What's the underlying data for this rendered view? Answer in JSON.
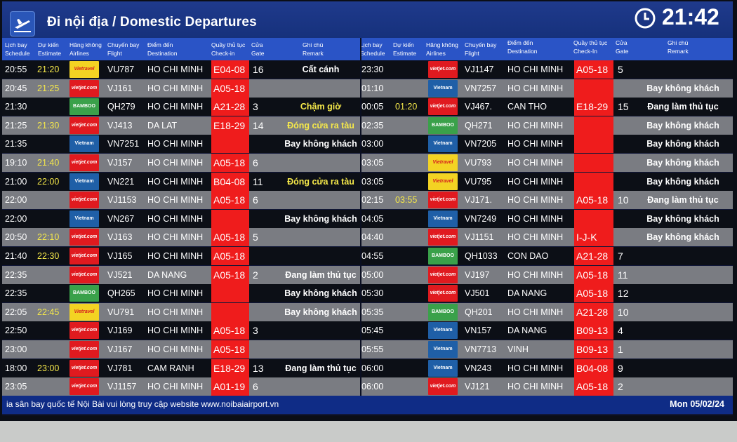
{
  "header": {
    "title": "Đi nội địa / Domestic Departures",
    "clock": "21:42"
  },
  "columns": {
    "schedule": [
      "Lịch bay",
      "Schedule"
    ],
    "estimate": [
      "Dự kiến",
      "Estimate"
    ],
    "airlines": [
      "Hãng không",
      "Airlines"
    ],
    "flight": [
      "Chuyến bay",
      "Flight"
    ],
    "destination": [
      "Điểm đến",
      "Destination"
    ],
    "checkin": [
      "Quầy thủ tục",
      "Check-in"
    ],
    "gate": [
      "Cửa",
      "Gate"
    ],
    "remark": [
      "Ghi chú",
      "Remark"
    ],
    "checkin_right": [
      "Quầy thủ tục",
      "Check-In"
    ]
  },
  "airline_logos": {
    "VJ": {
      "text": "vietjet.com",
      "color": "#e01a1f"
    },
    "VN": {
      "text": "Vietnam Airlines",
      "color": "#1f5fa7"
    },
    "QH": {
      "text": "BAMBOO",
      "color": "#3aa14a"
    },
    "VU": {
      "text": "Vietravel Airlines",
      "color": "#f3d323"
    }
  },
  "left": [
    {
      "schedule": "20:55",
      "estimate": "21:20",
      "airline": "VU",
      "flight": "VU787",
      "destination": "HO CHI MINH",
      "checkin": "E04-08",
      "gate": "16",
      "remark": "Cất cánh",
      "remark_color": "white"
    },
    {
      "schedule": "20:45",
      "estimate": "21:25",
      "airline": "VJ",
      "flight": "VJ161",
      "destination": "HO CHI MINH",
      "checkin": "A05-18",
      "gate": "",
      "remark": "",
      "remark_color": "white"
    },
    {
      "schedule": "21:30",
      "estimate": "",
      "airline": "QH",
      "flight": "QH279",
      "destination": "HO CHI MINH",
      "checkin": "A21-28",
      "gate": "3",
      "remark": "Chậm giờ",
      "remark_color": "yellow"
    },
    {
      "schedule": "21:25",
      "estimate": "21:30",
      "airline": "VJ",
      "flight": "VJ413",
      "destination": "DA LAT",
      "checkin": "E18-29",
      "gate": "14",
      "remark": "Đóng cửa ra tàu",
      "remark_color": "yellow"
    },
    {
      "schedule": "21:35",
      "estimate": "",
      "airline": "VN",
      "flight": "VN7251",
      "destination": "HO CHI MINH",
      "checkin": "",
      "gate": "",
      "remark": "Bay không khách",
      "remark_color": "white"
    },
    {
      "schedule": "19:10",
      "estimate": "21:40",
      "airline": "VJ",
      "flight": "VJ157",
      "destination": "HO CHI MINH",
      "checkin": "A05-18",
      "gate": "6",
      "remark": "",
      "remark_color": "white"
    },
    {
      "schedule": "21:00",
      "estimate": "22:00",
      "airline": "VN",
      "flight": "VN221",
      "destination": "HO CHI MINH",
      "checkin": "B04-08",
      "gate": "11",
      "remark": "Đóng cửa ra tàu",
      "remark_color": "yellow"
    },
    {
      "schedule": "22:00",
      "estimate": "",
      "airline": "VJ",
      "flight": "VJ1153",
      "destination": "HO CHI MINH",
      "checkin": "A05-18",
      "gate": "6",
      "remark": "",
      "remark_color": "white"
    },
    {
      "schedule": "22:00",
      "estimate": "",
      "airline": "VN",
      "flight": "VN267",
      "destination": "HO CHI MINH",
      "checkin": "",
      "gate": "",
      "remark": "Bay không khách",
      "remark_color": "white"
    },
    {
      "schedule": "20:50",
      "estimate": "22:10",
      "airline": "VJ",
      "flight": "VJ163",
      "destination": "HO CHI MINH",
      "checkin": "A05-18",
      "gate": "5",
      "remark": "",
      "remark_color": "white"
    },
    {
      "schedule": "21:40",
      "estimate": "22:30",
      "airline": "VJ",
      "flight": "VJ165",
      "destination": "HO CHI MINH",
      "checkin": "A05-18",
      "gate": "",
      "remark": "",
      "remark_color": "white"
    },
    {
      "schedule": "22:35",
      "estimate": "",
      "airline": "VJ",
      "flight": "VJ521",
      "destination": "DA NANG",
      "checkin": "A05-18",
      "gate": "2",
      "remark": "Đang làm thủ tục",
      "remark_color": "white"
    },
    {
      "schedule": "22:35",
      "estimate": "",
      "airline": "QH",
      "flight": "QH265",
      "destination": "HO CHI MINH",
      "checkin": "",
      "gate": "",
      "remark": "Bay không khách",
      "remark_color": "white"
    },
    {
      "schedule": "22:05",
      "estimate": "22:45",
      "airline": "VU",
      "flight": "VU791",
      "destination": "HO CHI MINH",
      "checkin": "",
      "gate": "",
      "remark": "Bay không khách",
      "remark_color": "white"
    },
    {
      "schedule": "22:50",
      "estimate": "",
      "airline": "VJ",
      "flight": "VJ169",
      "destination": "HO CHI MINH",
      "checkin": "A05-18",
      "gate": "3",
      "remark": "",
      "remark_color": "white"
    },
    {
      "schedule": "23:00",
      "estimate": "",
      "airline": "VJ",
      "flight": "VJ167",
      "destination": "HO CHI MINH",
      "checkin": "A05-18",
      "gate": "",
      "remark": "",
      "remark_color": "white"
    },
    {
      "schedule": "18:00",
      "estimate": "23:00",
      "airline": "VJ",
      "flight": "VJ781",
      "destination": "CAM RANH",
      "checkin": "E18-29",
      "gate": "13",
      "remark": "Đang làm thủ tục",
      "remark_color": "white"
    },
    {
      "schedule": "23:05",
      "estimate": "",
      "airline": "VJ",
      "flight": "VJ1157",
      "destination": "HO CHI MINH",
      "checkin": "A01-19",
      "gate": "6",
      "remark": "",
      "remark_color": "white"
    }
  ],
  "right": [
    {
      "schedule": "23:30",
      "estimate": "",
      "airline": "VJ",
      "flight": "VJ1147",
      "destination": "HO CHI MINH",
      "checkin": "A05-18",
      "gate": "5",
      "remark": "",
      "remark_color": "white"
    },
    {
      "schedule": "01:10",
      "estimate": "",
      "airline": "VN",
      "flight": "VN7257",
      "destination": "HO CHI MINH",
      "checkin": "",
      "gate": "",
      "remark": "Bay không khách",
      "remark_color": "white"
    },
    {
      "schedule": "00:05",
      "estimate": "01:20",
      "airline": "VJ",
      "flight": "VJ467.",
      "destination": "CAN THO",
      "checkin": "E18-29",
      "gate": "15",
      "remark": "Đang làm thủ tục",
      "remark_color": "white"
    },
    {
      "schedule": "02:35",
      "estimate": "",
      "airline": "QH",
      "flight": "QH271",
      "destination": "HO CHI MINH",
      "checkin": "",
      "gate": "",
      "remark": "Bay không khách",
      "remark_color": "white"
    },
    {
      "schedule": "03:00",
      "estimate": "",
      "airline": "VN",
      "flight": "VN7205",
      "destination": "HO CHI MINH",
      "checkin": "",
      "gate": "",
      "remark": "Bay không khách",
      "remark_color": "white"
    },
    {
      "schedule": "03:05",
      "estimate": "",
      "airline": "VU",
      "flight": "VU793",
      "destination": "HO CHI MINH",
      "checkin": "",
      "gate": "",
      "remark": "Bay không khách",
      "remark_color": "white"
    },
    {
      "schedule": "03:05",
      "estimate": "",
      "airline": "VU",
      "flight": "VU795",
      "destination": "HO CHI MINH",
      "checkin": "",
      "gate": "",
      "remark": "Bay không khách",
      "remark_color": "white"
    },
    {
      "schedule": "02:15",
      "estimate": "03:55",
      "airline": "VJ",
      "flight": "VJ171.",
      "destination": "HO CHI MINH",
      "checkin": "A05-18",
      "gate": "10",
      "remark": "Đang làm thủ tục",
      "remark_color": "white"
    },
    {
      "schedule": "04:05",
      "estimate": "",
      "airline": "VN",
      "flight": "VN7249",
      "destination": "HO CHI MINH",
      "checkin": "",
      "gate": "",
      "remark": "Bay không khách",
      "remark_color": "white"
    },
    {
      "schedule": "04:40",
      "estimate": "",
      "airline": "VJ",
      "flight": "VJ1151",
      "destination": "HO CHI MINH",
      "checkin": "I-J-K",
      "gate": "",
      "remark": "Bay không khách",
      "remark_color": "white"
    },
    {
      "schedule": "04:55",
      "estimate": "",
      "airline": "QH",
      "flight": "QH1033",
      "destination": "CON DAO",
      "checkin": "A21-28",
      "gate": "7",
      "remark": "",
      "remark_color": "white"
    },
    {
      "schedule": "05:00",
      "estimate": "",
      "airline": "VJ",
      "flight": "VJ197",
      "destination": "HO CHI MINH",
      "checkin": "A05-18",
      "gate": "11",
      "remark": "",
      "remark_color": "white"
    },
    {
      "schedule": "05:30",
      "estimate": "",
      "airline": "VJ",
      "flight": "VJ501",
      "destination": "DA NANG",
      "checkin": "A05-18",
      "gate": "12",
      "remark": "",
      "remark_color": "white"
    },
    {
      "schedule": "05:35",
      "estimate": "",
      "airline": "QH",
      "flight": "QH201",
      "destination": "HO CHI MINH",
      "checkin": "A21-28",
      "gate": "10",
      "remark": "",
      "remark_color": "white"
    },
    {
      "schedule": "05:45",
      "estimate": "",
      "airline": "VN",
      "flight": "VN157",
      "destination": "DA NANG",
      "checkin": "B09-13",
      "gate": "4",
      "remark": "",
      "remark_color": "white"
    },
    {
      "schedule": "05:55",
      "estimate": "",
      "airline": "VN",
      "flight": "VN7713",
      "destination": "VINH",
      "checkin": "B09-13",
      "gate": "1",
      "remark": "",
      "remark_color": "white"
    },
    {
      "schedule": "06:00",
      "estimate": "",
      "airline": "VN",
      "flight": "VN243",
      "destination": "HO CHI MINH",
      "checkin": "B04-08",
      "gate": "9",
      "remark": "",
      "remark_color": "white"
    },
    {
      "schedule": "06:00",
      "estimate": "",
      "airline": "VJ",
      "flight": "VJ121",
      "destination": "HO CHI MINH",
      "checkin": "A05-18",
      "gate": "2",
      "remark": "",
      "remark_color": "white"
    }
  ],
  "footer": {
    "ticker": "ia sân bay quốc tế Nội Bài vui lòng truy cập website www.noibaiairport.vn",
    "date": "Mon 05/02/24"
  }
}
